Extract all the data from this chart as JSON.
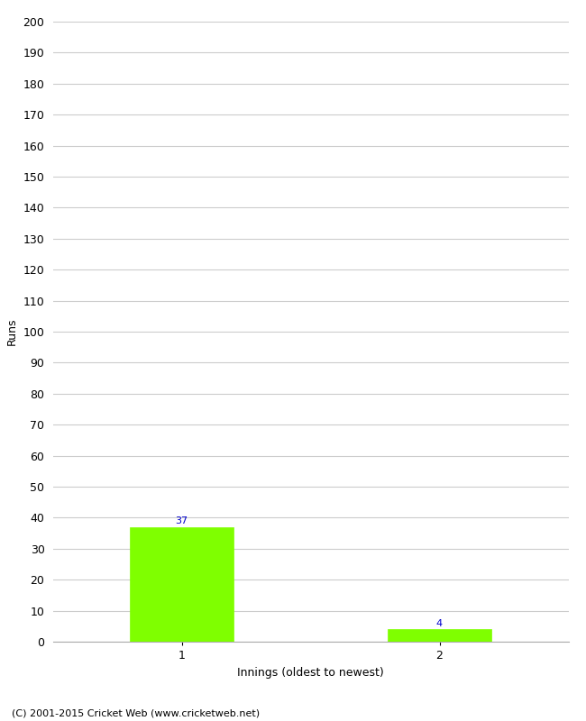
{
  "categories": [
    "1",
    "2"
  ],
  "values": [
    37,
    4
  ],
  "bar_color": "#7FFF00",
  "bar_edge_color": "#7FFF00",
  "ylabel": "Runs",
  "xlabel": "Innings (oldest to newest)",
  "ylim": [
    0,
    200
  ],
  "yticks": [
    0,
    10,
    20,
    30,
    40,
    50,
    60,
    70,
    80,
    90,
    100,
    110,
    120,
    130,
    140,
    150,
    160,
    170,
    180,
    190,
    200
  ],
  "background_color": "#ffffff",
  "grid_color": "#cccccc",
  "annotation_color": "#0000cc",
  "annotation_fontsize": 8,
  "axis_label_fontsize": 9,
  "tick_fontsize": 9,
  "footer_text": "(C) 2001-2015 Cricket Web (www.cricketweb.net)",
  "footer_fontsize": 8,
  "bar_positions": [
    1,
    3
  ],
  "xlim": [
    0,
    4
  ]
}
